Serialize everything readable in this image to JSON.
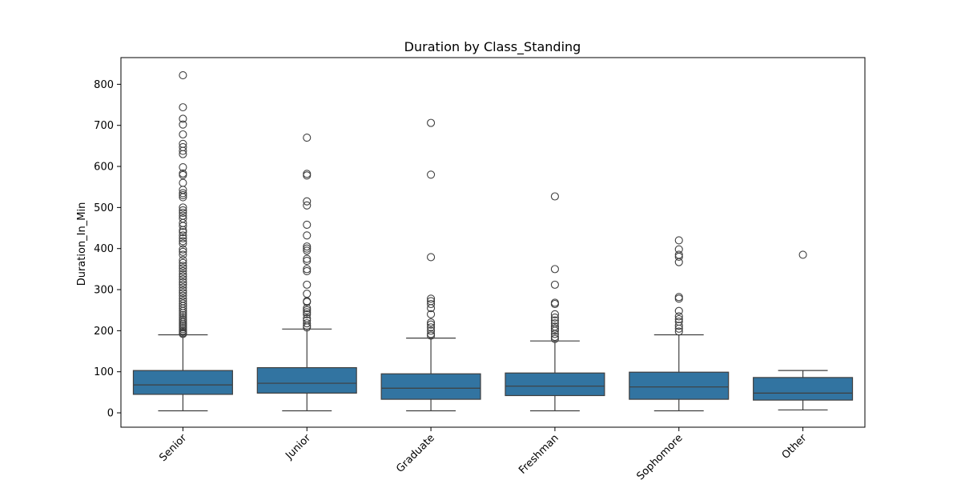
{
  "chart_data": {
    "type": "box",
    "title": "Duration by Class_Standing",
    "xlabel": "",
    "ylabel": "Duration_In_Min",
    "ylim": [
      -35,
      865
    ],
    "yticks": [
      0,
      100,
      200,
      300,
      400,
      500,
      600,
      700,
      800
    ],
    "grid": false,
    "box_color": "#3274a1",
    "edge_color": "#3f3f3f",
    "categories": [
      "Senior",
      "Junior",
      "Graduate",
      "Freshman",
      "Sophomore",
      "Other"
    ],
    "boxes": [
      {
        "category": "Senior",
        "whisker_low": 5,
        "q1": 45,
        "median": 68,
        "q3": 103,
        "whisker_high": 190,
        "outliers": [
          822,
          744,
          716,
          702,
          678,
          655,
          647,
          638,
          630,
          598,
          583,
          579,
          560,
          543,
          535,
          530,
          525,
          500,
          493,
          487,
          480,
          473,
          462,
          455,
          445,
          440,
          432,
          425,
          418,
          412,
          398,
          392,
          385,
          372,
          365,
          358,
          352,
          345,
          338,
          332,
          325,
          318,
          312,
          305,
          298,
          292,
          285,
          278,
          272,
          266,
          260,
          254,
          248,
          243,
          238,
          233,
          228,
          224,
          220,
          216,
          212,
          208,
          204,
          200,
          197,
          194,
          192
        ]
      },
      {
        "category": "Junior",
        "whisker_low": 5,
        "q1": 48,
        "median": 72,
        "q3": 110,
        "whisker_high": 204,
        "outliers": [
          670,
          582,
          578,
          515,
          505,
          458,
          432,
          405,
          400,
          395,
          375,
          370,
          350,
          345,
          312,
          290,
          272,
          270,
          255,
          250,
          245,
          240,
          230,
          225,
          218,
          212,
          208
        ]
      },
      {
        "category": "Graduate",
        "whisker_low": 5,
        "q1": 33,
        "median": 60,
        "q3": 95,
        "whisker_high": 182,
        "outliers": [
          706,
          580,
          379,
          278,
          272,
          265,
          255,
          240,
          220,
          215,
          208,
          200,
          192,
          188
        ]
      },
      {
        "category": "Freshman",
        "whisker_low": 5,
        "q1": 42,
        "median": 65,
        "q3": 97,
        "whisker_high": 175,
        "outliers": [
          527,
          350,
          312,
          268,
          265,
          240,
          232,
          225,
          218,
          210,
          205,
          200,
          192,
          185,
          180
        ]
      },
      {
        "category": "Sophomore",
        "whisker_low": 5,
        "q1": 33,
        "median": 63,
        "q3": 99,
        "whisker_high": 190,
        "outliers": [
          420,
          398,
          385,
          380,
          367,
          282,
          278,
          248,
          235,
          228,
          222,
          212,
          205,
          198
        ]
      },
      {
        "category": "Other",
        "whisker_low": 7,
        "q1": 31,
        "median": 48,
        "q3": 86,
        "whisker_high": 103,
        "outliers": [
          385
        ]
      }
    ]
  }
}
